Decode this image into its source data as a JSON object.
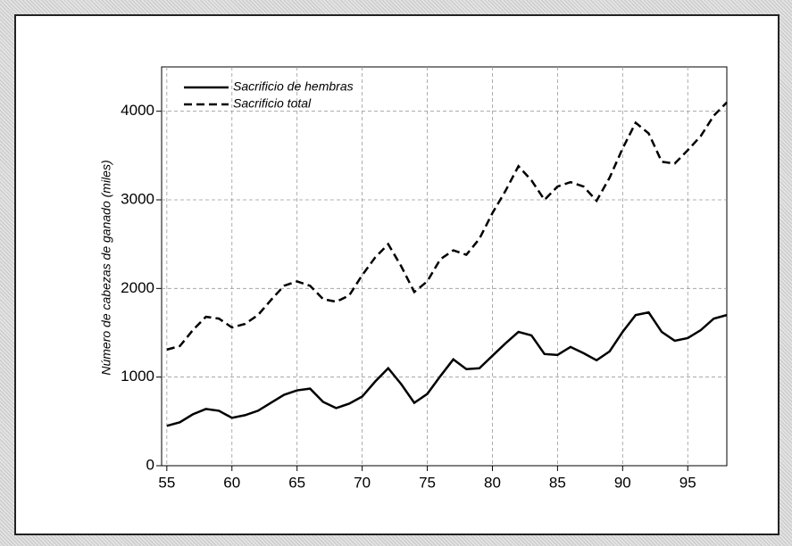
{
  "chart_data": {
    "type": "line",
    "y_label": "Número de cabezas de ganado (miles)",
    "x": [
      55,
      56,
      57,
      58,
      59,
      60,
      61,
      62,
      63,
      64,
      65,
      66,
      67,
      68,
      69,
      70,
      71,
      72,
      73,
      74,
      75,
      76,
      77,
      78,
      79,
      80,
      81,
      82,
      83,
      84,
      85,
      86,
      87,
      88,
      89,
      90,
      91,
      92,
      93,
      94,
      95,
      96,
      97,
      98
    ],
    "series": [
      {
        "name": "Sacrificio de hembras",
        "color": "#000000",
        "dash": "solid",
        "values": [
          450,
          490,
          580,
          640,
          620,
          540,
          570,
          620,
          710,
          800,
          850,
          870,
          720,
          650,
          700,
          780,
          950,
          1100,
          920,
          710,
          810,
          1010,
          1200,
          1090,
          1100,
          1240,
          1380,
          1510,
          1470,
          1260,
          1250,
          1340,
          1270,
          1190,
          1290,
          1510,
          1700,
          1730,
          1510,
          1410,
          1440,
          1530,
          1660,
          1700
        ]
      },
      {
        "name": "Sacrificio total",
        "color": "#000000",
        "dash": "dashed",
        "values": [
          1310,
          1350,
          1530,
          1680,
          1660,
          1560,
          1600,
          1700,
          1870,
          2030,
          2080,
          2030,
          1880,
          1850,
          1920,
          2150,
          2350,
          2500,
          2250,
          1960,
          2080,
          2330,
          2430,
          2380,
          2560,
          2850,
          3100,
          3380,
          3220,
          3000,
          3150,
          3200,
          3150,
          2990,
          3250,
          3580,
          3870,
          3750,
          3430,
          3410,
          3560,
          3720,
          3950,
          4100
        ]
      }
    ],
    "xlim": [
      54.6,
      98
    ],
    "xticks": [
      55,
      60,
      65,
      70,
      75,
      80,
      85,
      90,
      95
    ],
    "ylim": [
      0,
      4500
    ],
    "yticks": [
      0,
      1000,
      2000,
      3000,
      4000
    ],
    "grid": true,
    "legend": "top-left"
  }
}
